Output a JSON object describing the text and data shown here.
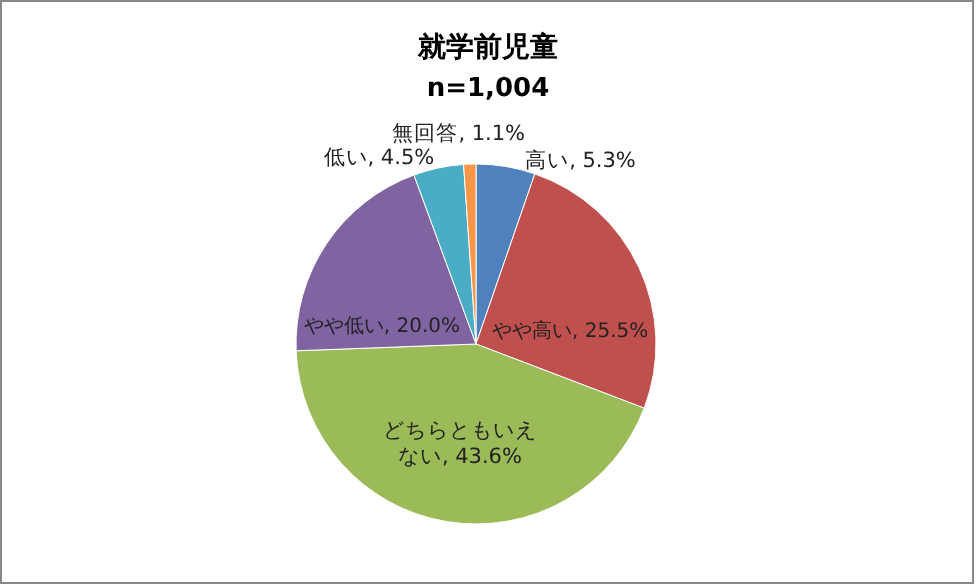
{
  "chart_data": {
    "type": "pie",
    "title": "就学前児童",
    "subtitle": "n=1,004",
    "categories": [
      "高い",
      "やや高い",
      "どちらともいえない",
      "やや低い",
      "低い",
      "無回答"
    ],
    "values": [
      5.3,
      25.5,
      43.6,
      20.0,
      4.5,
      1.1
    ],
    "value_labels": [
      "5.3%",
      "25.5%",
      "43.6%",
      "20.0%",
      "4.5%",
      "1.1%"
    ],
    "colors": [
      "#4f81bd",
      "#c0504d",
      "#9bbb59",
      "#8064a2",
      "#4bacc6",
      "#f79646"
    ]
  }
}
